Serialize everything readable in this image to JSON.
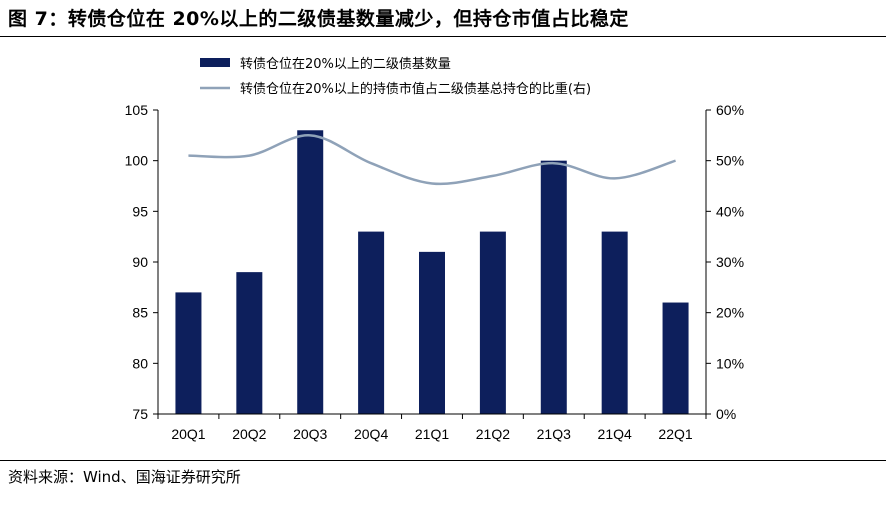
{
  "title": "图 7：转债仓位在 20%以上的二级债基数量减少，但持仓市值占比稳定",
  "source": "资料来源：Wind、国海证券研究所",
  "colors": {
    "bar": "#0d1f5c",
    "line": "#8fa2b8",
    "axis": "#000000"
  },
  "chart_data": {
    "type": "bar+line",
    "categories": [
      "20Q1",
      "20Q2",
      "20Q3",
      "20Q4",
      "21Q1",
      "21Q2",
      "21Q3",
      "21Q4",
      "22Q1"
    ],
    "series": [
      {
        "name": "转债仓位在20%以上的二级债基数量",
        "type": "bar",
        "axis": "left",
        "values": [
          87,
          89,
          103,
          93,
          91,
          93,
          100,
          93,
          86
        ]
      },
      {
        "name": "转债仓位在20%以上的持债市值占二级债基总持仓的比重(右)",
        "type": "line",
        "axis": "right",
        "values": [
          51,
          51,
          55,
          49.5,
          45.5,
          47,
          49.5,
          46.5,
          50
        ]
      }
    ],
    "y_left": {
      "min": 75,
      "max": 105,
      "step": 5,
      "tick_labels": [
        "75",
        "80",
        "85",
        "90",
        "95",
        "100",
        "105"
      ]
    },
    "y_right": {
      "min": 0,
      "max": 60,
      "step": 10,
      "tick_labels": [
        "0%",
        "10%",
        "20%",
        "30%",
        "40%",
        "50%",
        "60%"
      ]
    },
    "grid": false,
    "legend_position": "top-center"
  }
}
